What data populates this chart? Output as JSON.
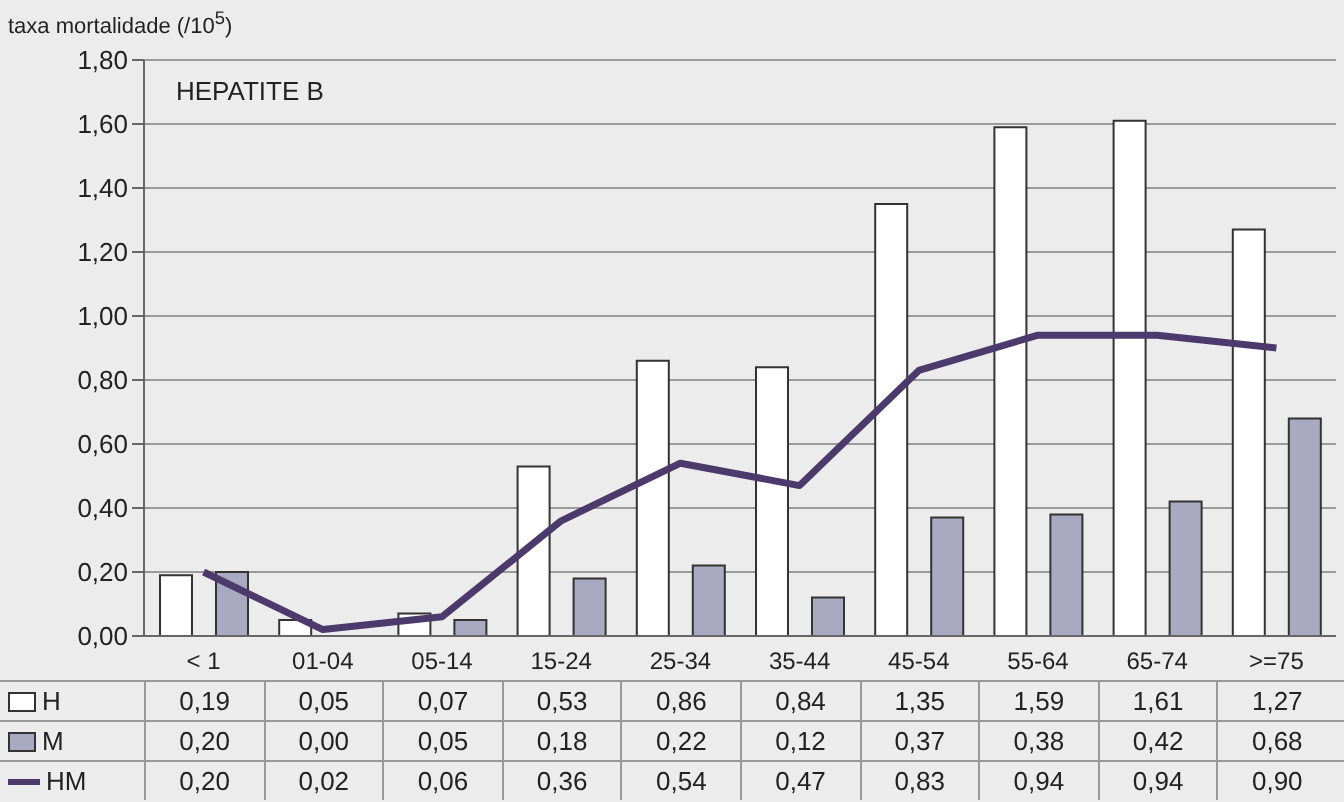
{
  "chart_data": {
    "type": "bar",
    "title": "HEPATITE B",
    "ylabel": "taxa mortalidade (/10$^{5}$)",
    "categories": [
      "< 1",
      "01-04",
      "05-14",
      "15-24",
      "25-34",
      "35-44",
      "45-54",
      "55-64",
      "65-74",
      ">=75"
    ],
    "series": [
      {
        "name": "H",
        "color": "#ffffff",
        "values": [
          0.19,
          0.05,
          0.07,
          0.53,
          0.86,
          0.84,
          1.35,
          1.59,
          1.61,
          1.27
        ],
        "value_labels": [
          "0,19",
          "0,05",
          "0,07",
          "0,53",
          "0,86",
          "0,84",
          "1,35",
          "1,59",
          "1,61",
          "1,27"
        ]
      },
      {
        "name": "M",
        "color": "#a9a9c2",
        "values": [
          0.2,
          0.0,
          0.05,
          0.18,
          0.22,
          0.12,
          0.37,
          0.38,
          0.42,
          0.68
        ],
        "value_labels": [
          "0,20",
          "0,00",
          "0,05",
          "0,18",
          "0,22",
          "0,12",
          "0,37",
          "0,38",
          "0,42",
          "0,68"
        ]
      },
      {
        "name": "HM",
        "type": "line",
        "color": "#4b3a6b",
        "values": [
          0.2,
          0.02,
          0.06,
          0.36,
          0.54,
          0.47,
          0.83,
          0.94,
          0.94,
          0.9
        ],
        "value_labels": [
          "0,20",
          "0,02",
          "0,06",
          "0,36",
          "0,54",
          "0,47",
          "0,83",
          "0,94",
          "0,94",
          "0,90"
        ]
      }
    ],
    "ylim": [
      0,
      1.8
    ],
    "yticks": [
      {
        "value": 0,
        "label": "0,00"
      },
      {
        "value": 0.2,
        "label": "0,20"
      },
      {
        "value": 0.4,
        "label": "0,40"
      },
      {
        "value": 0.6,
        "label": "0,60"
      },
      {
        "value": 0.8,
        "label": "0,80"
      },
      {
        "value": 1.0,
        "label": "1,00"
      },
      {
        "value": 1.2,
        "label": "1,20"
      },
      {
        "value": 1.4,
        "label": "1,40"
      },
      {
        "value": 1.6,
        "label": "1,60"
      },
      {
        "value": 1.8,
        "label": "1,80"
      }
    ],
    "grid": "y",
    "legend": "bottom",
    "marker": "none",
    "line_style": "solid"
  }
}
